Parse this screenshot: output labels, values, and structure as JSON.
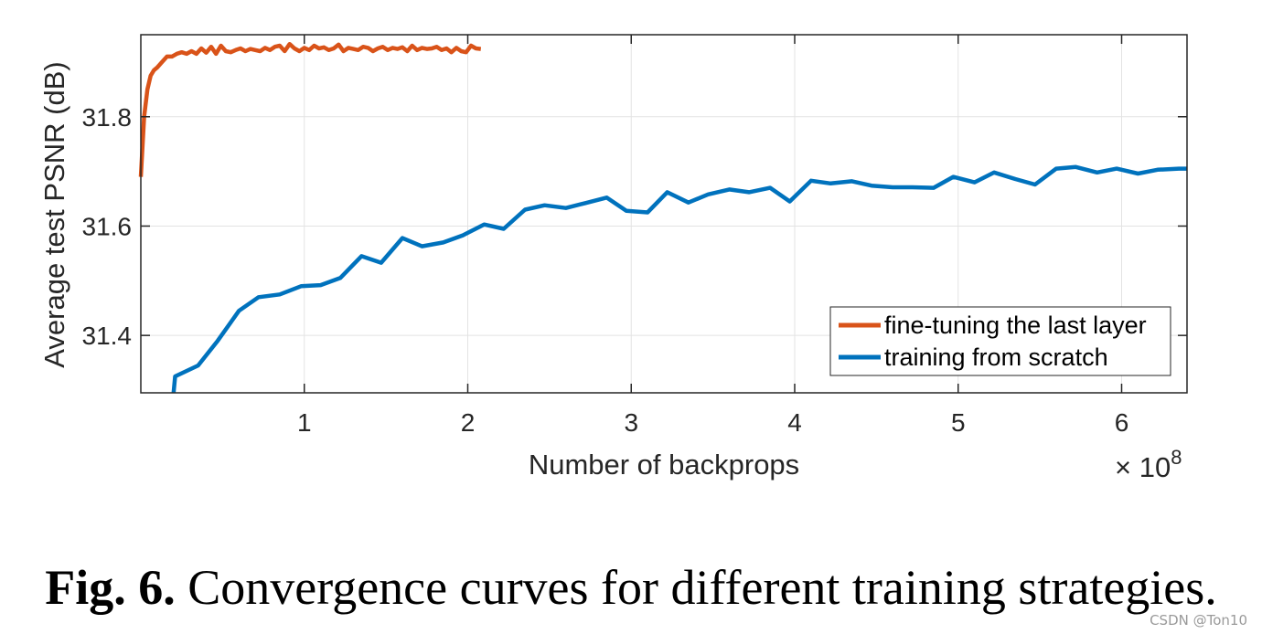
{
  "chart_data": {
    "type": "line",
    "xlabel": "Number of backprops",
    "ylabel": "Average test PSNR (dB)",
    "x_multiplier": "× 10",
    "x_multiplier_exp": "8",
    "xlim": [
      0.0,
      6.4
    ],
    "ylim": [
      31.295,
      31.95
    ],
    "xticks": [
      1,
      2,
      3,
      4,
      5,
      6
    ],
    "xtick_labels": [
      "1",
      "2",
      "3",
      "4",
      "5",
      "6"
    ],
    "yticks": [
      31.4,
      31.6,
      31.8
    ],
    "ytick_labels": [
      "31.4",
      "31.6",
      "31.8"
    ],
    "grid": true,
    "legend_position": "bottom-right",
    "series": [
      {
        "name": "fine-tuning the last layer",
        "color": "#D95319",
        "x": [
          0.0,
          0.02,
          0.04,
          0.06,
          0.08,
          0.1,
          0.13,
          0.16,
          0.19,
          0.22,
          0.25,
          0.28,
          0.31,
          0.34,
          0.37,
          0.4,
          0.43,
          0.46,
          0.49,
          0.52,
          0.55,
          0.58,
          0.61,
          0.64,
          0.67,
          0.7,
          0.73,
          0.76,
          0.79,
          0.82,
          0.85,
          0.88,
          0.91,
          0.94,
          0.97,
          1.0,
          1.03,
          1.06,
          1.09,
          1.12,
          1.15,
          1.18,
          1.21,
          1.24,
          1.27,
          1.3,
          1.33,
          1.36,
          1.39,
          1.42,
          1.45,
          1.48,
          1.51,
          1.54,
          1.57,
          1.6,
          1.63,
          1.66,
          1.69,
          1.72,
          1.75,
          1.78,
          1.81,
          1.84,
          1.87,
          1.9,
          1.93,
          1.96,
          1.99,
          2.02,
          2.05,
          2.08
        ],
        "y": [
          31.69,
          31.8,
          31.85,
          31.875,
          31.885,
          31.89,
          31.9,
          31.91,
          31.91,
          31.915,
          31.918,
          31.915,
          31.92,
          31.915,
          31.925,
          31.917,
          31.928,
          31.915,
          31.93,
          31.92,
          31.918,
          31.922,
          31.925,
          31.92,
          31.924,
          31.922,
          31.92,
          31.926,
          31.922,
          31.928,
          31.93,
          31.92,
          31.933,
          31.925,
          31.92,
          31.926,
          31.922,
          31.93,
          31.925,
          31.927,
          31.922,
          31.925,
          31.932,
          31.92,
          31.926,
          31.924,
          31.922,
          31.928,
          31.926,
          31.92,
          31.925,
          31.928,
          31.922,
          31.926,
          31.924,
          31.927,
          31.92,
          31.93,
          31.922,
          31.926,
          31.924,
          31.925,
          31.928,
          31.922,
          31.925,
          31.918,
          31.926,
          31.92,
          31.918,
          31.93,
          31.925,
          31.924
        ]
      },
      {
        "name": "training from scratch",
        "color": "#0072BD",
        "x": [
          0.2,
          0.21,
          0.35,
          0.47,
          0.6,
          0.72,
          0.85,
          0.98,
          1.1,
          1.22,
          1.35,
          1.47,
          1.6,
          1.72,
          1.85,
          1.97,
          2.1,
          2.22,
          2.35,
          2.47,
          2.6,
          2.72,
          2.85,
          2.97,
          3.1,
          3.22,
          3.35,
          3.47,
          3.6,
          3.72,
          3.85,
          3.97,
          4.1,
          4.22,
          4.35,
          4.47,
          4.6,
          4.72,
          4.85,
          4.97,
          5.1,
          5.22,
          5.35,
          5.47,
          5.6,
          5.72,
          5.85,
          5.97,
          6.1,
          6.22,
          6.35,
          6.4
        ],
        "y": [
          31.295,
          31.325,
          31.345,
          31.39,
          31.445,
          31.47,
          31.475,
          31.49,
          31.492,
          31.505,
          31.545,
          31.533,
          31.578,
          31.563,
          31.57,
          31.583,
          31.603,
          31.595,
          31.63,
          31.638,
          31.633,
          31.642,
          31.652,
          31.628,
          31.625,
          31.662,
          31.643,
          31.658,
          31.667,
          31.662,
          31.67,
          31.645,
          31.683,
          31.678,
          31.682,
          31.674,
          31.671,
          31.671,
          31.67,
          31.69,
          31.68,
          31.698,
          31.686,
          31.676,
          31.705,
          31.708,
          31.698,
          31.705,
          31.696,
          31.703,
          31.705,
          31.705
        ]
      }
    ]
  },
  "caption": {
    "fig_label": "Fig. 6.",
    "text": "Convergence curves for different training strategies."
  },
  "watermark": "CSDN @Ton10"
}
